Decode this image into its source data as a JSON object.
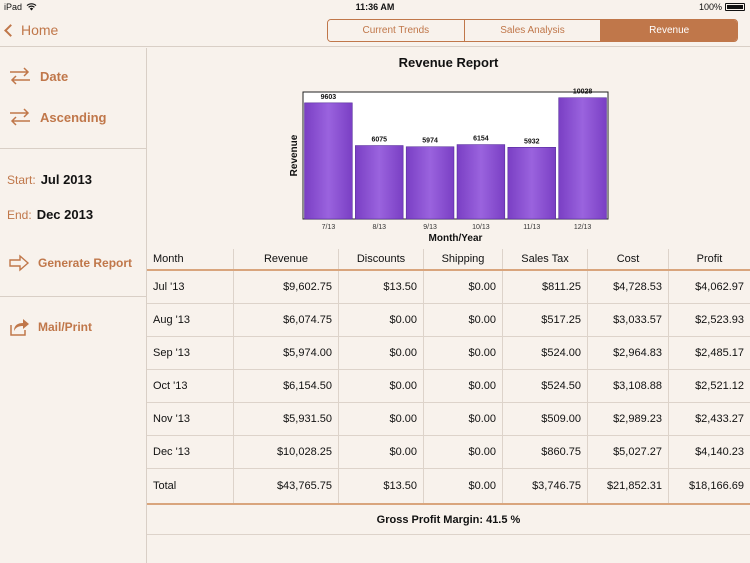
{
  "status_bar": {
    "carrier": "iPad",
    "time": "11:36 AM",
    "battery": "100%"
  },
  "nav": {
    "back_label": "Home",
    "tabs": [
      {
        "label": "Current Trends",
        "active": false
      },
      {
        "label": "Sales Analysis",
        "active": false
      },
      {
        "label": "Revenue",
        "active": true
      }
    ]
  },
  "sidebar": {
    "sort_field": "Date",
    "sort_order": "Ascending",
    "start_label": "Start:",
    "start_value": "Jul 2013",
    "end_label": "End:",
    "end_value": "Dec 2013",
    "generate_label": "Generate Report",
    "mail_label": "Mail/Print"
  },
  "colors": {
    "accent": "#c0774a",
    "bar": "#7a3fc4",
    "bar_light": "#9a63de",
    "background": "#f8f2ec"
  },
  "chart_data": {
    "type": "bar",
    "title": "Revenue Report",
    "xlabel": "Month/Year",
    "ylabel": "Revenue",
    "categories": [
      "7/13",
      "8/13",
      "9/13",
      "10/13",
      "11/13",
      "12/13"
    ],
    "values": [
      9603,
      6075,
      5974,
      6154,
      5932,
      10028
    ],
    "ylim": [
      0,
      10500
    ]
  },
  "table": {
    "headers": [
      "Month",
      "Revenue",
      "Discounts",
      "Shipping",
      "Sales Tax",
      "Cost",
      "Profit"
    ],
    "rows": [
      [
        "Jul '13",
        "$9,602.75",
        "$13.50",
        "$0.00",
        "$811.25",
        "$4,728.53",
        "$4,062.97"
      ],
      [
        "Aug '13",
        "$6,074.75",
        "$0.00",
        "$0.00",
        "$517.25",
        "$3,033.57",
        "$2,523.93"
      ],
      [
        "Sep '13",
        "$5,974.00",
        "$0.00",
        "$0.00",
        "$524.00",
        "$2,964.83",
        "$2,485.17"
      ],
      [
        "Oct '13",
        "$6,154.50",
        "$0.00",
        "$0.00",
        "$524.50",
        "$3,108.88",
        "$2,521.12"
      ],
      [
        "Nov '13",
        "$5,931.50",
        "$0.00",
        "$0.00",
        "$509.00",
        "$2,989.23",
        "$2,433.27"
      ],
      [
        "Dec '13",
        "$10,028.25",
        "$0.00",
        "$0.00",
        "$860.75",
        "$5,027.27",
        "$4,140.23"
      ]
    ],
    "total": [
      "Total",
      "$43,765.75",
      "$13.50",
      "$0.00",
      "$3,746.75",
      "$21,852.31",
      "$18,166.69"
    ],
    "gross_margin": "Gross Profit Margin: 41.5 %"
  }
}
